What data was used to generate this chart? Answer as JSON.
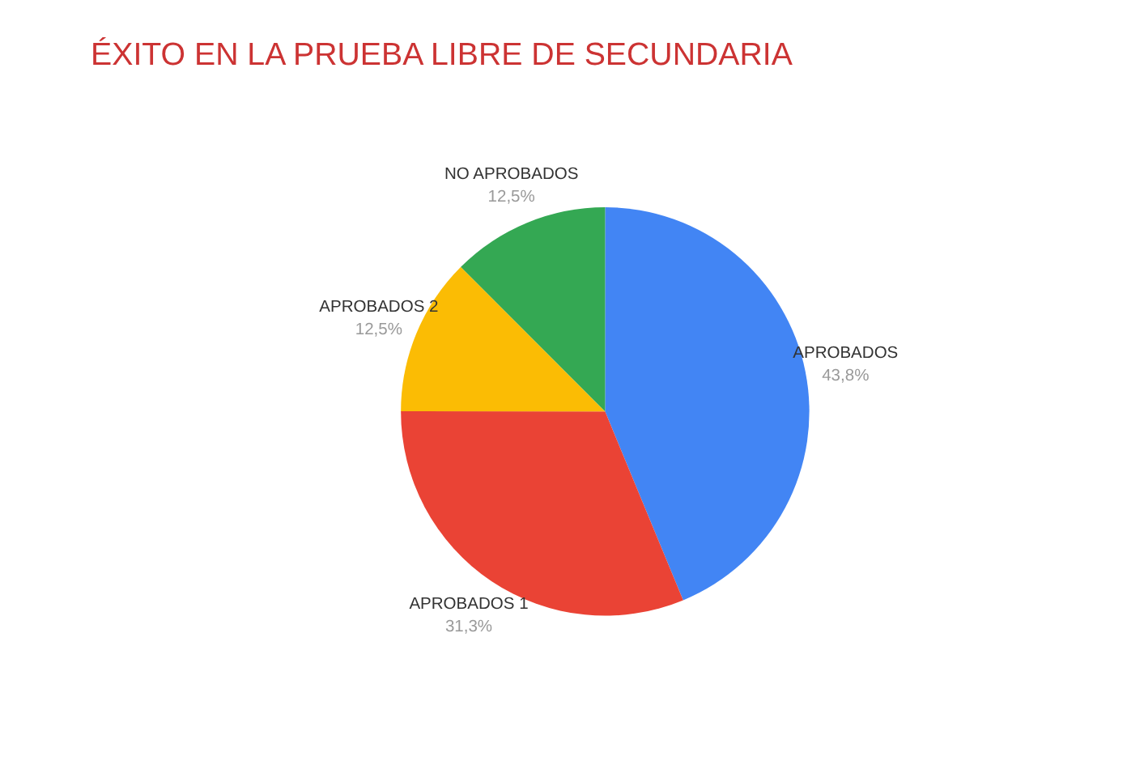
{
  "chart_data": {
    "type": "pie",
    "title": "ÉXITO EN LA PRUEBA LIBRE DE SECUNDARIA",
    "categories": [
      "APROBADOS",
      "APROBADOS 1",
      "APROBADOS 2",
      "NO APROBADOS"
    ],
    "values": [
      43.8,
      31.3,
      12.5,
      12.5
    ],
    "colors": [
      "#4285f4",
      "#ea4335",
      "#fbbc04",
      "#34a853"
    ],
    "value_labels": [
      "43,8%",
      "31,3%",
      "12,5%",
      "12,5%"
    ],
    "legend": false
  }
}
